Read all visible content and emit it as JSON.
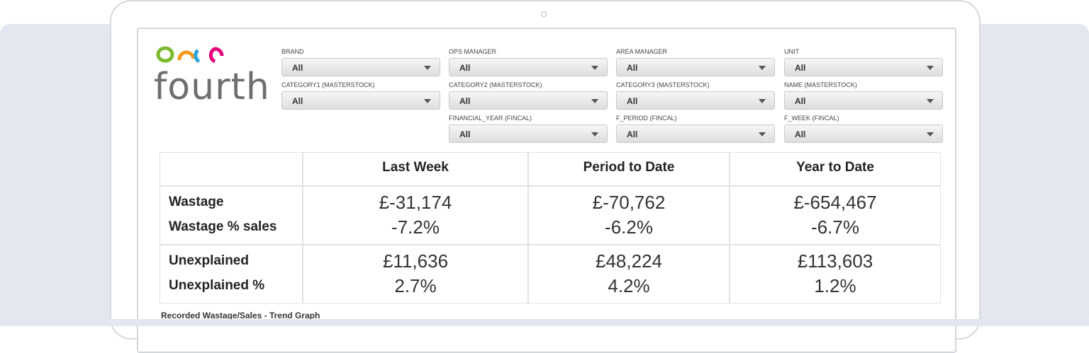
{
  "brand": {
    "logo_text": "fourth",
    "colors": {
      "green": "#7dbb2e",
      "orange": "#f39a1e",
      "blue": "#2ba3dd",
      "pink": "#e6007e"
    }
  },
  "filters": [
    {
      "label": "BRAND",
      "value": "All"
    },
    {
      "label": "OPS MANAGER",
      "value": "All"
    },
    {
      "label": "AREA MANAGER",
      "value": "All"
    },
    {
      "label": "UNIT",
      "value": "All"
    },
    {
      "label": "CATEGORY1 (MASTERSTOCK)",
      "value": "All"
    },
    {
      "label": "CATEGORY2 (MASTERSTOCK)",
      "value": "All"
    },
    {
      "label": "CATEGORY3 (MASTERSTOCK)",
      "value": "All"
    },
    {
      "label": "NAME (MASTERSTOCK)",
      "value": "All"
    },
    {
      "label": "FINANCIAL_YEAR (FINCAL)",
      "value": "All"
    },
    {
      "label": "F_PERIOD (FINCAL)",
      "value": "All"
    },
    {
      "label": "F_WEEK (FINCAL)",
      "value": "All"
    }
  ],
  "kpi": {
    "columns": [
      "Last Week",
      "Period to Date",
      "Year to Date"
    ],
    "rows": [
      {
        "label": "Wastage",
        "values": [
          "£-31,174",
          "£-70,762",
          "£-654,467"
        ]
      },
      {
        "label": "Wastage % sales",
        "values": [
          "-7.2%",
          "-6.2%",
          "-6.7%"
        ]
      },
      {
        "label": "Unexplained",
        "values": [
          "£11,636",
          "£48,224",
          "£113,603"
        ]
      },
      {
        "label": "Unexplained %",
        "values": [
          "2.7%",
          "4.2%",
          "1.2%"
        ]
      }
    ]
  },
  "trend_title": "Recorded Wastage/Sales - Trend Graph"
}
